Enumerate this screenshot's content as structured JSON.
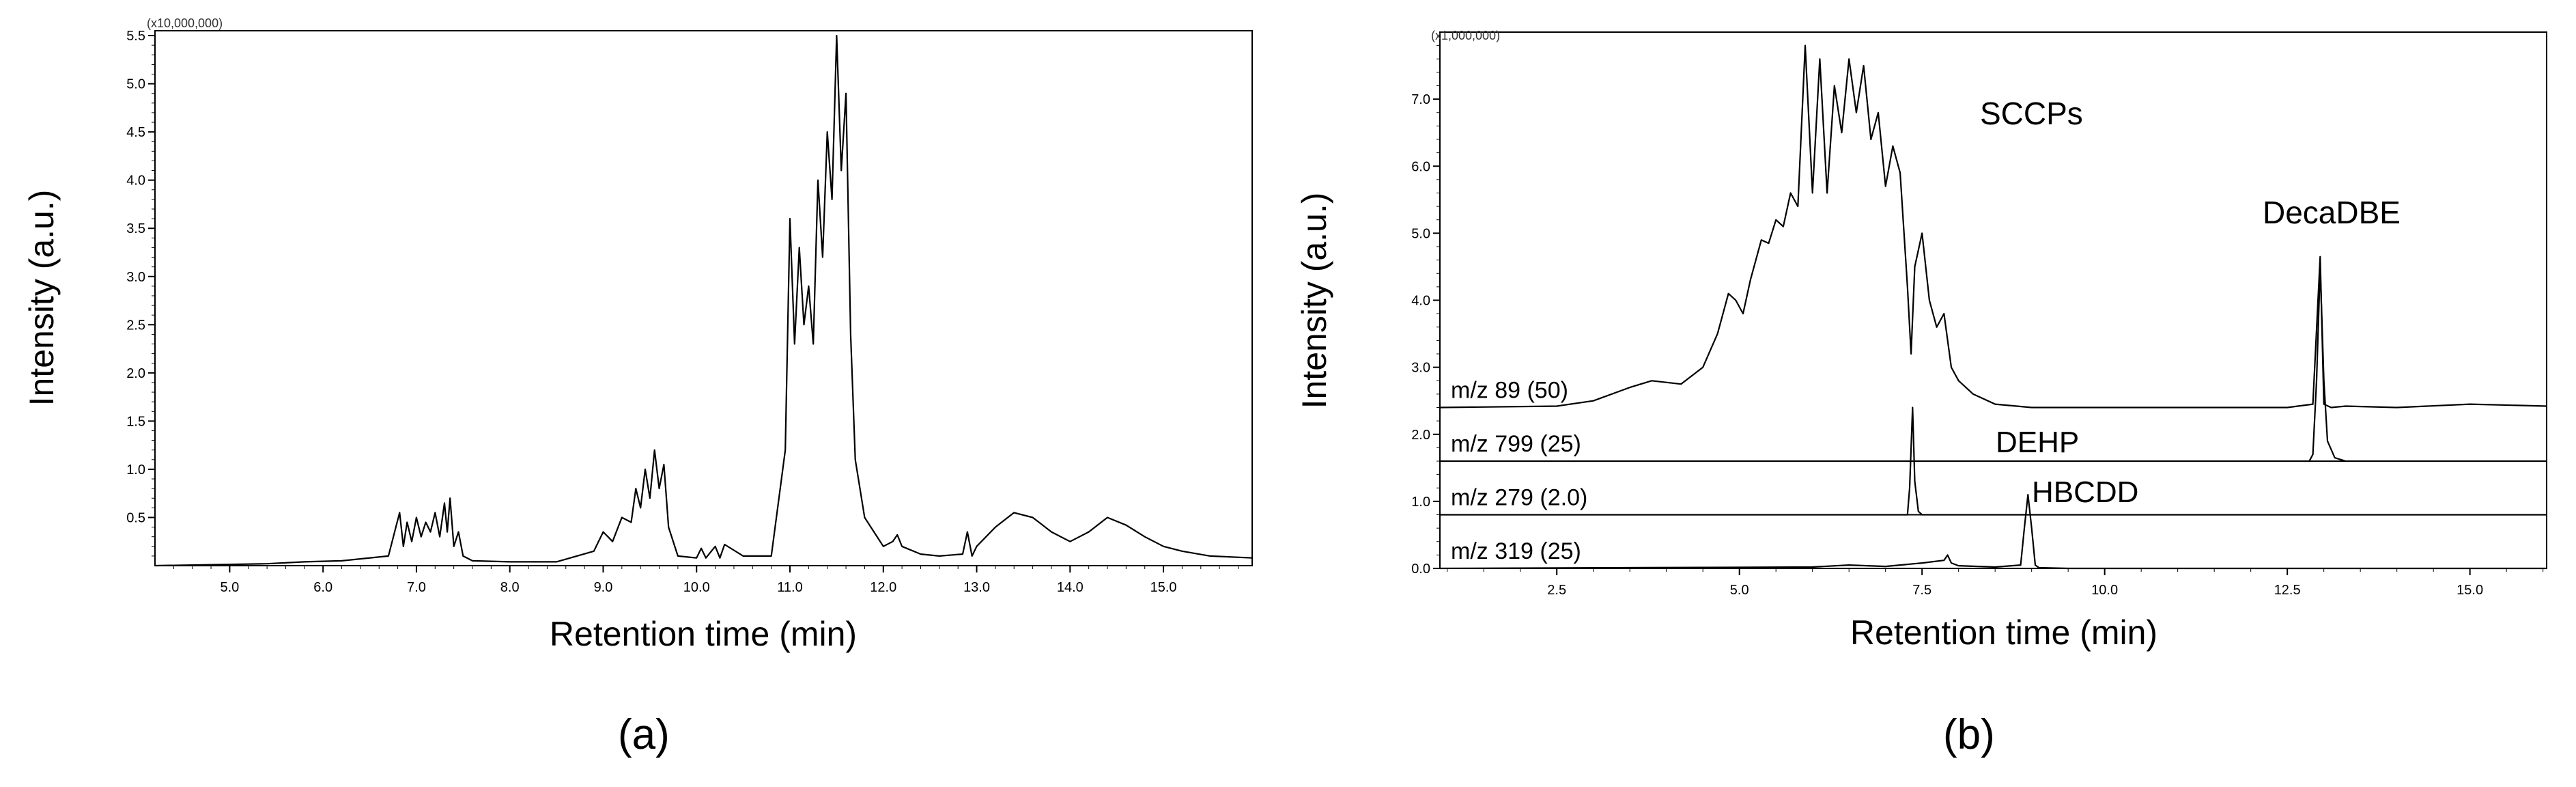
{
  "panels": [
    {
      "label": "(a)"
    },
    {
      "label": "(b)"
    }
  ],
  "chart_data": [
    {
      "type": "line",
      "title": "",
      "xlabel": "Retention time (min)",
      "ylabel": "Intensity (a.u.)",
      "multiplier": "(x10,000,000)",
      "xlim": [
        4.2,
        15.95
      ],
      "ylim": [
        0,
        5.55
      ],
      "xticks": [
        "5.0",
        "6.0",
        "7.0",
        "8.0",
        "9.0",
        "10.0",
        "11.0",
        "12.0",
        "13.0",
        "14.0",
        "15.0"
      ],
      "yticks": [
        "0.5",
        "1.0",
        "1.5",
        "2.0",
        "2.5",
        "3.0",
        "3.5",
        "4.0",
        "4.5",
        "5.0",
        "5.5"
      ],
      "series": [
        {
          "x": [
            4.2,
            5.4,
            5.8,
            6.2,
            6.7,
            6.82,
            6.86,
            6.9,
            6.95,
            7.0,
            7.05,
            7.1,
            7.15,
            7.2,
            7.25,
            7.3,
            7.33,
            7.36,
            7.4,
            7.45,
            7.5,
            7.6,
            8.0,
            8.5,
            8.9,
            9.0,
            9.1,
            9.2,
            9.3,
            9.35,
            9.4,
            9.45,
            9.5,
            9.55,
            9.6,
            9.65,
            9.7,
            9.8,
            10.0,
            10.05,
            10.1,
            10.2,
            10.25,
            10.3,
            10.5,
            10.8,
            10.95,
            11.0,
            11.05,
            11.1,
            11.15,
            11.2,
            11.25,
            11.3,
            11.35,
            11.4,
            11.45,
            11.5,
            11.55,
            11.6,
            11.65,
            11.7,
            11.8,
            11.9,
            12.0,
            12.1,
            12.15,
            12.2,
            12.4,
            12.6,
            12.85,
            12.9,
            12.95,
            13.0,
            13.2,
            13.4,
            13.6,
            13.8,
            14.0,
            14.1,
            14.2,
            14.4,
            14.6,
            14.8,
            15.0,
            15.2,
            15.5,
            15.95
          ],
          "y": [
            0.0,
            0.02,
            0.04,
            0.05,
            0.1,
            0.55,
            0.2,
            0.45,
            0.25,
            0.5,
            0.3,
            0.45,
            0.35,
            0.55,
            0.3,
            0.65,
            0.35,
            0.7,
            0.2,
            0.35,
            0.1,
            0.05,
            0.04,
            0.04,
            0.15,
            0.35,
            0.25,
            0.5,
            0.45,
            0.8,
            0.6,
            1.0,
            0.7,
            1.2,
            0.8,
            1.05,
            0.4,
            0.1,
            0.08,
            0.18,
            0.08,
            0.2,
            0.08,
            0.22,
            0.1,
            0.1,
            1.2,
            3.6,
            2.3,
            3.3,
            2.5,
            2.9,
            2.3,
            4.0,
            3.2,
            4.5,
            3.8,
            5.5,
            4.1,
            4.9,
            2.4,
            1.1,
            0.5,
            0.35,
            0.2,
            0.25,
            0.32,
            0.2,
            0.12,
            0.1,
            0.12,
            0.35,
            0.1,
            0.2,
            0.4,
            0.55,
            0.5,
            0.35,
            0.25,
            0.3,
            0.35,
            0.5,
            0.42,
            0.3,
            0.2,
            0.15,
            0.1,
            0.08
          ]
        }
      ]
    },
    {
      "type": "line",
      "title": "",
      "xlabel": "Retention time (min)",
      "ylabel": "Intensity (a.u.)",
      "multiplier": "(x1,000,000)",
      "xlim": [
        0.9,
        16.05
      ],
      "ylim": [
        0,
        8.0
      ],
      "xticks": [
        "2.5",
        "5.0",
        "7.5",
        "10.0",
        "12.5",
        "15.0"
      ],
      "yticks": [
        "0.0",
        "1.0",
        "2.0",
        "3.0",
        "4.0",
        "5.0",
        "6.0",
        "7.0"
      ],
      "annotations": [
        "SCCPs",
        "DecaDBE",
        "DEHP",
        "HBCDD"
      ],
      "series": [
        {
          "name": "m/z 89 (50)",
          "baseline": 2.4,
          "x": [
            0.9,
            2.5,
            3.0,
            3.5,
            3.8,
            4.2,
            4.5,
            4.7,
            4.85,
            4.95,
            5.05,
            5.15,
            5.3,
            5.4,
            5.5,
            5.6,
            5.7,
            5.8,
            5.9,
            6.0,
            6.1,
            6.2,
            6.3,
            6.4,
            6.5,
            6.6,
            6.7,
            6.8,
            6.9,
            7.0,
            7.1,
            7.2,
            7.3,
            7.35,
            7.4,
            7.5,
            7.6,
            7.7,
            7.8,
            7.9,
            8.0,
            8.2,
            8.5,
            9.0,
            10.0,
            12.5,
            12.85,
            12.95,
            13.0,
            13.1,
            13.3,
            14.0,
            15.0,
            16.05
          ],
          "y": [
            2.4,
            2.42,
            2.5,
            2.7,
            2.8,
            2.75,
            3.0,
            3.5,
            4.1,
            4.0,
            3.8,
            4.3,
            4.9,
            4.85,
            5.2,
            5.1,
            5.6,
            5.4,
            7.8,
            5.6,
            7.6,
            5.6,
            7.2,
            6.5,
            7.6,
            6.8,
            7.5,
            6.4,
            6.8,
            5.7,
            6.3,
            5.9,
            4.2,
            3.2,
            4.5,
            5.0,
            4.0,
            3.6,
            3.8,
            3.0,
            2.8,
            2.6,
            2.45,
            2.4,
            2.4,
            2.4,
            2.45,
            4.65,
            2.45,
            2.4,
            2.42,
            2.4,
            2.45,
            2.42
          ]
        },
        {
          "name": "m/z 799 (25)",
          "baseline": 1.6,
          "x": [
            0.9,
            12.8,
            12.85,
            12.9,
            12.95,
            13.0,
            13.05,
            13.15,
            13.3,
            16.05
          ],
          "y": [
            1.6,
            1.6,
            1.7,
            2.8,
            4.5,
            2.8,
            1.9,
            1.65,
            1.6,
            1.6
          ]
        },
        {
          "name": "m/z 279 (2.0)",
          "baseline": 0.8,
          "x": [
            0.9,
            7.3,
            7.33,
            7.37,
            7.4,
            7.45,
            7.5,
            16.05
          ],
          "y": [
            0.8,
            0.8,
            1.2,
            2.4,
            1.3,
            0.85,
            0.8,
            0.8
          ]
        },
        {
          "name": "m/z 319 (25)",
          "baseline": 0.0,
          "x": [
            0.9,
            6.0,
            6.5,
            7.0,
            7.5,
            7.8,
            7.85,
            7.9,
            8.0,
            8.5,
            8.85,
            8.9,
            8.95,
            9.0,
            9.05,
            9.1,
            9.5,
            16.05
          ],
          "y": [
            0.0,
            0.02,
            0.05,
            0.03,
            0.08,
            0.12,
            0.2,
            0.08,
            0.04,
            0.02,
            0.05,
            0.6,
            1.1,
            0.6,
            0.05,
            0.01,
            0.0,
            0.0
          ]
        }
      ]
    }
  ]
}
